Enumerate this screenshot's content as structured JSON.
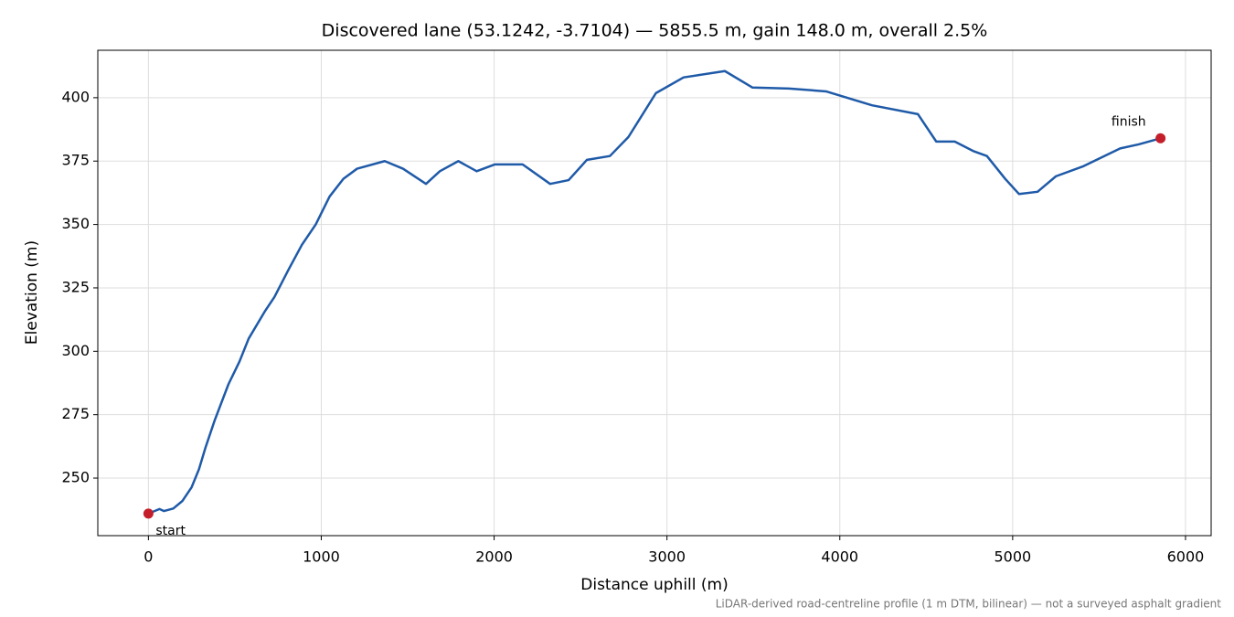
{
  "chart_data": {
    "type": "line",
    "title": "Discovered lane (53.1242, -3.7104) — 5855.5 m, gain 148.0 m, overall 2.5%",
    "xlabel": "Distance uphill (m)",
    "ylabel": "Elevation (m)",
    "footnote": "LiDAR-derived road-centreline profile (1 m DTM, bilinear) — not a surveyed asphalt gradient",
    "annotations": [
      "start",
      "finish"
    ],
    "x": [
      0,
      64,
      90,
      144,
      197,
      250,
      293,
      330,
      383,
      463,
      527,
      580,
      676,
      729,
      809,
      888,
      968,
      1048,
      1128,
      1207,
      1367,
      1473,
      1606,
      1686,
      1793,
      1899,
      2005,
      2165,
      2324,
      2431,
      2537,
      2670,
      2777,
      2936,
      3096,
      3335,
      3495,
      3707,
      3920,
      4186,
      4452,
      4558,
      4665,
      4771,
      4851,
      4957,
      5037,
      5144,
      5250,
      5410,
      5622,
      5729,
      5855.5
    ],
    "values": [
      236.0,
      237.8,
      237.0,
      238.0,
      241.0,
      246.4,
      253.6,
      262.0,
      272.7,
      287.0,
      296.0,
      305.0,
      316.0,
      321.4,
      332.0,
      342.0,
      350.0,
      361.0,
      368.0,
      372.0,
      375.0,
      372.0,
      366.0,
      371.0,
      375.0,
      371.0,
      373.7,
      373.7,
      366.0,
      367.5,
      375.5,
      377.0,
      384.5,
      401.8,
      408.0,
      410.5,
      404.0,
      403.6,
      402.5,
      397.0,
      393.5,
      382.7,
      382.7,
      379.0,
      377.0,
      368.0,
      362.0,
      362.9,
      369.0,
      373.0,
      380.0,
      381.6,
      384.0
    ],
    "color": "#1f5aa8",
    "marker_color": "#c41e2a",
    "xlim": [
      -292.8,
      6148.3
    ],
    "ylim": [
      227.3,
      418.7
    ],
    "xticks": [
      0,
      1000,
      2000,
      3000,
      4000,
      5000,
      6000
    ],
    "yticks": [
      250,
      275,
      300,
      325,
      350,
      375,
      400
    ],
    "grid": true
  }
}
